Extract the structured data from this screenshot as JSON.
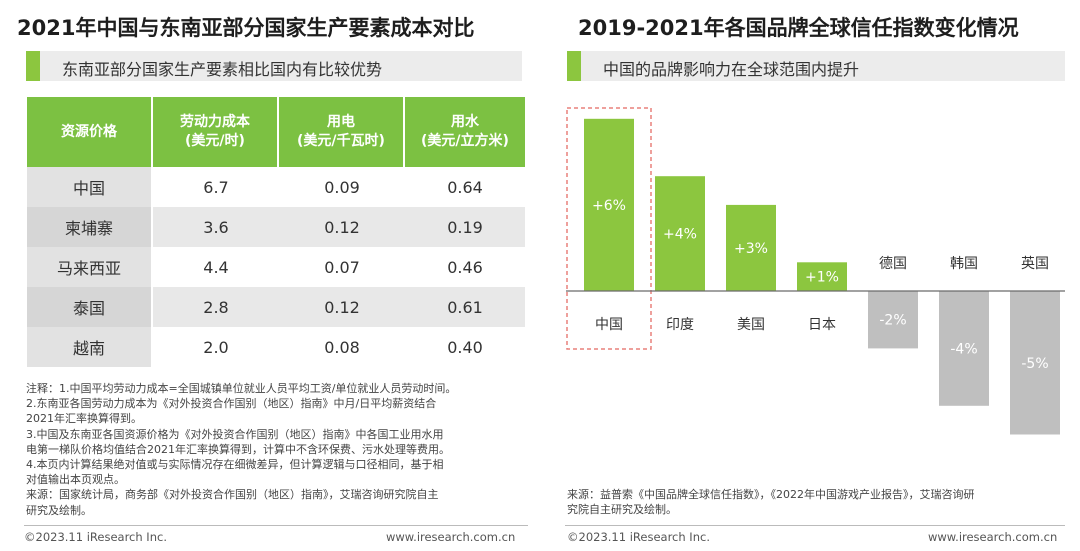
{
  "left": {
    "title": "2021年中国与东南亚部分国家生产要素成本对比",
    "subtitle": "东南亚部分国家生产要素相比国内有比较优势",
    "table": {
      "headers": [
        {
          "line1": "资源价格",
          "line2": ""
        },
        {
          "line1": "劳动力成本",
          "line2": "(美元/时)"
        },
        {
          "line1": "用电",
          "line2": "(美元/千瓦时)"
        },
        {
          "line1": "用水",
          "line2": "(美元/立方米)"
        }
      ],
      "rows": [
        [
          "中国",
          "6.7",
          "0.09",
          "0.64"
        ],
        [
          "柬埔寨",
          "3.6",
          "0.12",
          "0.19"
        ],
        [
          "马来西亚",
          "4.4",
          "0.07",
          "0.46"
        ],
        [
          "泰国",
          "2.8",
          "0.12",
          "0.61"
        ],
        [
          "越南",
          "2.0",
          "0.08",
          "0.40"
        ]
      ]
    },
    "notes": [
      "注释：1.中国平均劳动力成本=全国城镇单位就业人员平均工资/单位就业人员劳动时间。",
      "2.东南亚各国劳动力成本为《对外投资合作国别（地区）指南》中月/日平均薪资结合",
      "2021年汇率换算得到。",
      "3.中国及东南亚各国资源价格为《对外投资合作国别（地区）指南》中各国工业用水用",
      "电第一梯队价格均值结合2021年汇率换算得到，计算中不含环保费、污水处理等费用。",
      "4.本页内计算结果绝对值或与实际情况存在细微差异，但计算逻辑与口径相同，基于相",
      "对值输出本页观点。",
      "来源：国家统计局，商务部《对外投资合作国别（地区）指南》，艾瑞咨询研究院自主",
      "研究及绘制。"
    ],
    "footer_left": "©2023.11 iResearch Inc.",
    "footer_right": "www.iresearch.com.cn"
  },
  "right": {
    "title": "2019-2021年各国品牌全球信任指数变化情况",
    "subtitle": "中国的品牌影响力在全球范围内提升",
    "source": [
      "来源：益普索《中国品牌全球信任指数》，《2022年中国游戏产业报告》，艾瑞咨询研",
      "究院自主研究及绘制。"
    ],
    "footer_left": "©2023.11 iResearch Inc.",
    "footer_right": "www.iresearch.com.cn"
  },
  "chart_data": {
    "type": "bar",
    "title": "2019-2021年各国品牌全球信任指数变化情况",
    "xlabel": "",
    "ylabel": "",
    "categories": [
      "中国",
      "印度",
      "美国",
      "日本",
      "德国",
      "韩国",
      "英国"
    ],
    "values": [
      6,
      4,
      3,
      1,
      -2,
      -4,
      -5
    ],
    "labels": [
      "+6%",
      "+4%",
      "+3%",
      "+1%",
      "-2%",
      "-4%",
      "-5%"
    ],
    "ylim": [
      -5,
      6
    ],
    "highlight": "中国",
    "colors": {
      "positive": "#8cc63f",
      "negative": "#bfbfbf",
      "highlight_border": "#e8807c"
    }
  }
}
